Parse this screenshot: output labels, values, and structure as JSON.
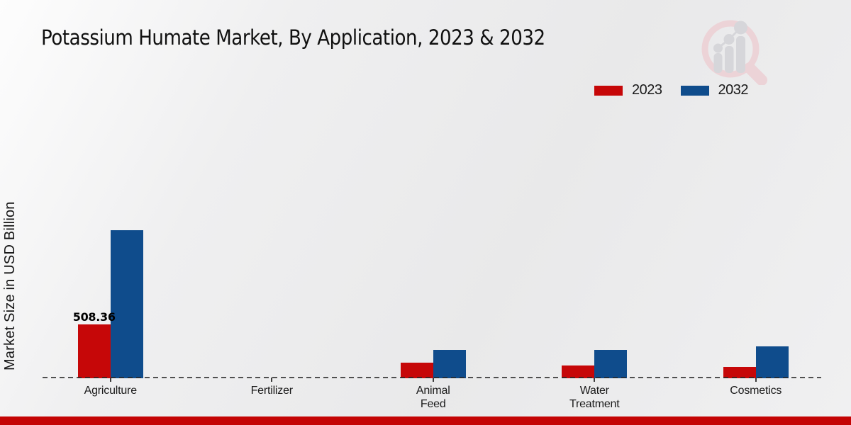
{
  "title": "Potassium Humate Market, By Application, 2023 & 2032",
  "ylabel": "Market Size in USD Billion",
  "legend": [
    {
      "label": "2023",
      "color": "#c60708"
    },
    {
      "label": "2032",
      "color": "#0f4c8c"
    }
  ],
  "logo": {
    "name": "magnifier-bar-chart-watermark",
    "ring_color": "#ecd3d7",
    "bars_color": "#d6d6da"
  },
  "accent_bar_color": "#c40404",
  "chart_data": {
    "type": "bar",
    "title": "Potassium Humate Market, By Application, 2023 & 2032",
    "xlabel": "",
    "ylabel": "Market Size in USD Billion",
    "categories": [
      "Agriculture",
      "Fertilizer",
      "Animal Feed",
      "Water Treatment",
      "Cosmetics"
    ],
    "category_label_lines": [
      [
        "Agriculture"
      ],
      [
        "Fertilizer"
      ],
      [
        "Animal",
        "Feed"
      ],
      [
        "Water",
        "Treatment"
      ],
      [
        "Cosmetics"
      ]
    ],
    "series": [
      {
        "name": "2023",
        "color": "#c60708",
        "values": [
          508.36,
          0,
          147,
          122,
          107
        ],
        "value_labels": [
          "508.36",
          "",
          "",
          "",
          ""
        ]
      },
      {
        "name": "2032",
        "color": "#0f4c8c",
        "values": [
          1400,
          0,
          268,
          268,
          301
        ],
        "value_labels": [
          "",
          "",
          "",
          "",
          ""
        ]
      }
    ],
    "note": "Only the 2023 Agriculture bar is labeled (508.36); all other values estimated from bar heights",
    "ylim": [
      0,
      1500
    ],
    "grid": false,
    "y_axis_ticks_shown": false,
    "baseline_style": "dashed",
    "legend_position": "top-right"
  }
}
